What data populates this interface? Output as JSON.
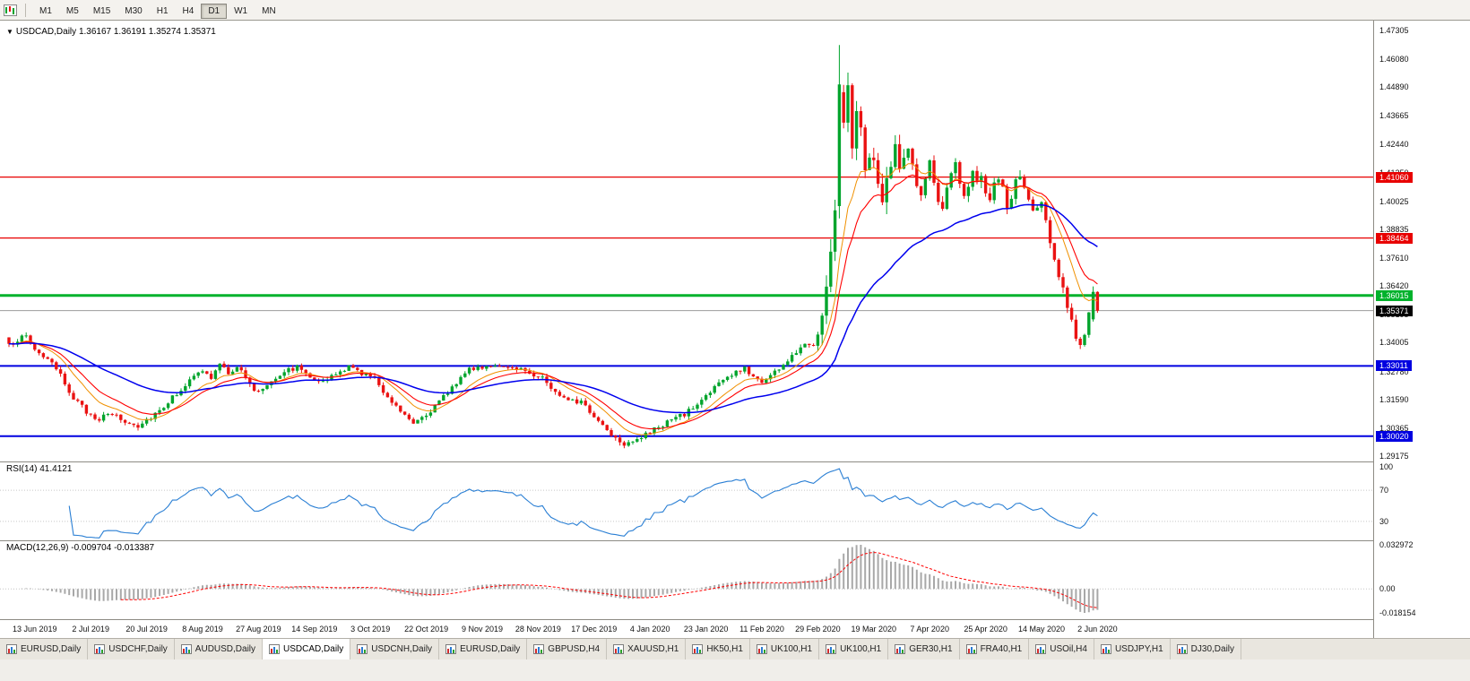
{
  "toolbar": {
    "timeframes": [
      {
        "label": "M1",
        "active": false
      },
      {
        "label": "M5",
        "active": false
      },
      {
        "label": "M15",
        "active": false
      },
      {
        "label": "M30",
        "active": false
      },
      {
        "label": "H1",
        "active": false
      },
      {
        "label": "H4",
        "active": false
      },
      {
        "label": "D1",
        "active": true
      },
      {
        "label": "W1",
        "active": false
      },
      {
        "label": "MN",
        "active": false
      }
    ]
  },
  "chart_data": {
    "type": "candlestick",
    "symbol": "USDCAD",
    "period": "Daily",
    "title": "USDCAD,Daily",
    "title_ohlc": "1.36167 1.36191 1.35274 1.35371",
    "last_ohlc": {
      "open": "1.36167",
      "high": "1.36191",
      "low": "1.35274",
      "close": "1.35371"
    },
    "ylim": [
      1.2902,
      1.4757
    ],
    "y_ticks": [
      "1.47305",
      "1.46080",
      "1.44890",
      "1.43665",
      "1.42440",
      "1.41250",
      "1.40025",
      "1.38835",
      "1.37610",
      "1.36420",
      "1.35195",
      "1.34005",
      "1.32780",
      "1.31590",
      "1.30365",
      "1.29175"
    ],
    "x_labels": [
      "13 Jun 2019",
      "2 Jul 2019",
      "20 Jul 2019",
      "8 Aug 2019",
      "27 Aug 2019",
      "14 Sep 2019",
      "3 Oct 2019",
      "22 Oct 2019",
      "9 Nov 2019",
      "28 Nov 2019",
      "17 Dec 2019",
      "4 Jan 2020",
      "23 Jan 2020",
      "11 Feb 2020",
      "29 Feb 2020",
      "19 Mar 2020",
      "7 Apr 2020",
      "25 Apr 2020",
      "14 May 2020",
      "2 Jun 2020"
    ],
    "candle_count": 254,
    "candle_colors": {
      "up": "#00a42c",
      "down": "#ea1212"
    },
    "price_path": [
      [
        0,
        1.3385
      ],
      [
        2,
        1.3415
      ],
      [
        4,
        1.3428
      ],
      [
        6,
        1.3372
      ],
      [
        9,
        1.333
      ],
      [
        12,
        1.3258
      ],
      [
        15,
        1.3165
      ],
      [
        18,
        1.3105
      ],
      [
        21,
        1.3076
      ],
      [
        24,
        1.3098
      ],
      [
        27,
        1.3062
      ],
      [
        30,
        1.3048
      ],
      [
        33,
        1.3086
      ],
      [
        36,
        1.313
      ],
      [
        39,
        1.3186
      ],
      [
        42,
        1.3238
      ],
      [
        45,
        1.3282
      ],
      [
        47,
        1.3248
      ],
      [
        49,
        1.3306
      ],
      [
        51,
        1.3272
      ],
      [
        53,
        1.33
      ],
      [
        55,
        1.3252
      ],
      [
        57,
        1.3192
      ],
      [
        59,
        1.3206
      ],
      [
        61,
        1.3242
      ],
      [
        64,
        1.328
      ],
      [
        67,
        1.3296
      ],
      [
        70,
        1.3262
      ],
      [
        73,
        1.3232
      ],
      [
        76,
        1.3266
      ],
      [
        79,
        1.3296
      ],
      [
        82,
        1.3272
      ],
      [
        85,
        1.3246
      ],
      [
        88,
        1.3172
      ],
      [
        91,
        1.3112
      ],
      [
        94,
        1.3066
      ],
      [
        97,
        1.3096
      ],
      [
        100,
        1.3146
      ],
      [
        103,
        1.3212
      ],
      [
        106,
        1.3276
      ],
      [
        109,
        1.3296
      ],
      [
        112,
        1.3306
      ],
      [
        115,
        1.3286
      ],
      [
        118,
        1.3296
      ],
      [
        121,
        1.3272
      ],
      [
        124,
        1.3252
      ],
      [
        127,
        1.3186
      ],
      [
        130,
        1.3166
      ],
      [
        133,
        1.3146
      ],
      [
        136,
        1.3086
      ],
      [
        139,
        1.3032
      ],
      [
        141,
        1.2996
      ],
      [
        143,
        1.2972
      ],
      [
        145,
        1.2986
      ],
      [
        148,
        1.3006
      ],
      [
        151,
        1.3042
      ],
      [
        154,
        1.3072
      ],
      [
        157,
        1.3096
      ],
      [
        160,
        1.3136
      ],
      [
        163,
        1.3196
      ],
      [
        166,
        1.3242
      ],
      [
        169,
        1.3272
      ],
      [
        171,
        1.3292
      ],
      [
        173,
        1.3256
      ],
      [
        175,
        1.3236
      ],
      [
        177,
        1.3262
      ],
      [
        179,
        1.3292
      ],
      [
        181,
        1.332
      ],
      [
        183,
        1.3362
      ],
      [
        185,
        1.3406
      ],
      [
        187,
        1.3388
      ],
      [
        189,
        1.3552
      ],
      [
        190,
        1.3662
      ],
      [
        191,
        1.3762
      ],
      [
        192,
        1.3982
      ],
      [
        193,
        1.45
      ],
      [
        194,
        1.4342
      ],
      [
        195,
        1.4478
      ],
      [
        196,
        1.4222
      ],
      [
        197,
        1.442
      ],
      [
        198,
        1.4282
      ],
      [
        199,
        1.4122
      ],
      [
        200,
        1.4232
      ],
      [
        201,
        1.4152
      ],
      [
        202,
        1.4062
      ],
      [
        203,
        1.3986
      ],
      [
        204,
        1.4072
      ],
      [
        205,
        1.4162
      ],
      [
        206,
        1.4216
      ],
      [
        207,
        1.4122
      ],
      [
        208,
        1.4182
      ],
      [
        209,
        1.4246
      ],
      [
        210,
        1.4152
      ],
      [
        211,
        1.4076
      ],
      [
        212,
        1.4022
      ],
      [
        213,
        1.4096
      ],
      [
        214,
        1.4166
      ],
      [
        215,
        1.4086
      ],
      [
        216,
        1.4006
      ],
      [
        217,
        1.3956
      ],
      [
        218,
        1.4042
      ],
      [
        219,
        1.4102
      ],
      [
        220,
        1.4172
      ],
      [
        221,
        1.4096
      ],
      [
        222,
        1.4022
      ],
      [
        223,
        1.4086
      ],
      [
        224,
        1.4146
      ],
      [
        225,
        1.4086
      ],
      [
        226,
        1.4096
      ],
      [
        227,
        1.4026
      ],
      [
        228,
        1.3986
      ],
      [
        229,
        1.4076
      ],
      [
        230,
        1.4106
      ],
      [
        231,
        1.4046
      ],
      [
        232,
        1.3986
      ],
      [
        233,
        1.4006
      ],
      [
        234,
        1.4086
      ],
      [
        235,
        1.4116
      ],
      [
        236,
        1.4056
      ],
      [
        238,
        1.3956
      ],
      [
        240,
        1.3992
      ],
      [
        241,
        1.3906
      ],
      [
        242,
        1.3836
      ],
      [
        243,
        1.3762
      ],
      [
        244,
        1.3692
      ],
      [
        245,
        1.3626
      ],
      [
        246,
        1.3562
      ],
      [
        247,
        1.3496
      ],
      [
        248,
        1.3432
      ],
      [
        249,
        1.3372
      ],
      [
        250,
        1.3426
      ],
      [
        251,
        1.3516
      ],
      [
        252,
        1.3617
      ],
      [
        253,
        1.35371
      ]
    ],
    "volatility_zones": [
      [
        0,
        0.0028
      ],
      [
        188,
        0.011
      ],
      [
        209,
        0.0055
      ],
      [
        236,
        0.0048
      ],
      [
        250,
        0.0035
      ]
    ],
    "candle_overrides": [
      {
        "i": 193,
        "o": 1.3982,
        "h": 1.4668,
        "l": 1.393,
        "c": 1.45
      },
      {
        "i": 252,
        "o": 1.35,
        "h": 1.364,
        "l": 1.349,
        "c": 1.3617
      },
      {
        "i": 253,
        "o": 1.36167,
        "h": 1.36191,
        "l": 1.35274,
        "c": 1.35371
      }
    ],
    "horizontal_lines": [
      {
        "price": 1.4106,
        "label": "1.41060",
        "color": "#e80000",
        "width": 1.2
      },
      {
        "price": 1.38464,
        "label": "1.38464",
        "color": "#e80000",
        "width": 1.2
      },
      {
        "price": 1.36015,
        "label": "1.36015",
        "color": "#00b22c",
        "width": 3
      },
      {
        "price": 1.33011,
        "label": "1.33011",
        "color": "#0000e0",
        "width": 2
      },
      {
        "price": 1.3002,
        "label": "1.30020",
        "color": "#0000e0",
        "width": 2
      }
    ],
    "current_price": {
      "value": 1.35371,
      "label": "1.35371",
      "line_color": "#9b9b9b",
      "box_color": "#000000"
    },
    "moving_averages": [
      {
        "period": 10,
        "color": "#f09000",
        "width": 1
      },
      {
        "period": 16,
        "color": "#ff0000",
        "width": 1.1
      },
      {
        "period": 45,
        "color": "#0000ee",
        "width": 1.5
      }
    ],
    "indicators": [
      {
        "name": "RSI",
        "params": "14",
        "value": "41.4121",
        "label": "RSI(14) 41.4121",
        "line_color": "#2a7fd4",
        "levels": [
          {
            "value": 100,
            "label": "100"
          },
          {
            "value": 70,
            "label": "70"
          },
          {
            "value": 30,
            "label": "30"
          }
        ]
      },
      {
        "name": "MACD",
        "params": "12,26,9",
        "values": "-0.009704 -0.013387",
        "label": "MACD(12,26,9) -0.009704 -0.013387",
        "histogram_color": "#a8a8a8",
        "signal_color": "#ff0000",
        "axis_labels": [
          "0.032972",
          "0.00",
          "-0.018154"
        ]
      }
    ]
  },
  "tabs": [
    {
      "label": "EURUSD,Daily",
      "active": false
    },
    {
      "label": "USDCHF,Daily",
      "active": false
    },
    {
      "label": "AUDUSD,Daily",
      "active": false
    },
    {
      "label": "USDCAD,Daily",
      "active": true
    },
    {
      "label": "USDCNH,Daily",
      "active": false
    },
    {
      "label": "EURUSD,Daily",
      "active": false
    },
    {
      "label": "GBPUSD,H4",
      "active": false
    },
    {
      "label": "XAUUSD,H1",
      "active": false
    },
    {
      "label": "HK50,H1",
      "active": false
    },
    {
      "label": "UK100,H1",
      "active": false
    },
    {
      "label": "UK100,H1",
      "active": false
    },
    {
      "label": "GER30,H1",
      "active": false
    },
    {
      "label": "FRA40,H1",
      "active": false
    },
    {
      "label": "USOil,H4",
      "active": false
    },
    {
      "label": "USDJPY,H1",
      "active": false
    },
    {
      "label": "DJ30,Daily",
      "active": false
    }
  ]
}
